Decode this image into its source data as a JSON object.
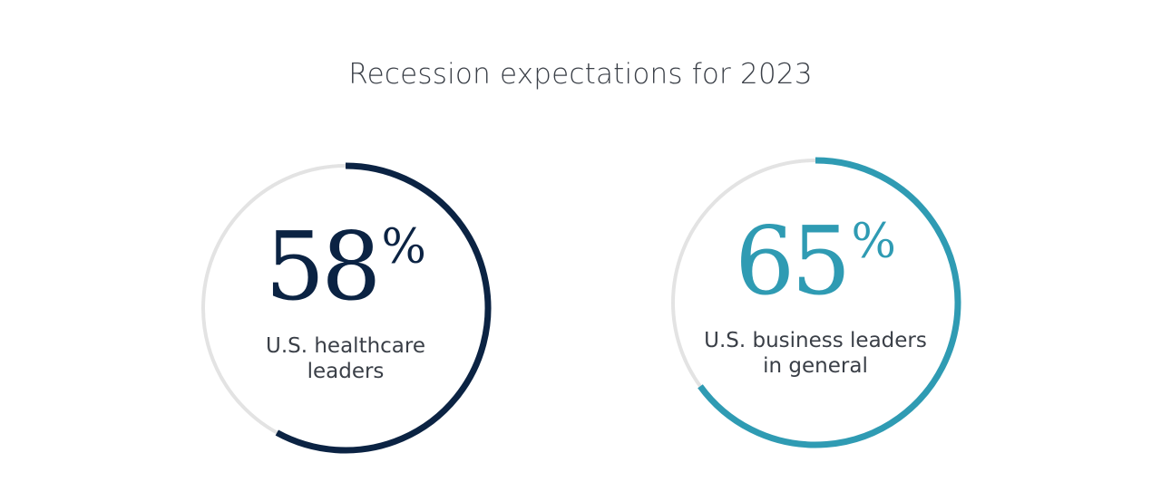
{
  "title": "Recession expectations for 2023",
  "colors": {
    "track": "#e3e3e3",
    "healthcare": "#0b2343",
    "business": "#2f9bb3"
  },
  "gauges": [
    {
      "value": "58",
      "unit": "%",
      "label_line1": "U.S. healthcare",
      "label_line2": "leaders"
    },
    {
      "value": "65",
      "unit": "%",
      "label_line1": "U.S. business leaders",
      "label_line2": "in general"
    }
  ],
  "chart_data": {
    "type": "pie",
    "title": "Recession expectations for 2023",
    "categories": [
      "U.S. healthcare leaders",
      "U.S. business leaders in general"
    ],
    "values": [
      58,
      65
    ],
    "unit": "%",
    "colors": [
      "#0b2343",
      "#2f9bb3"
    ]
  }
}
